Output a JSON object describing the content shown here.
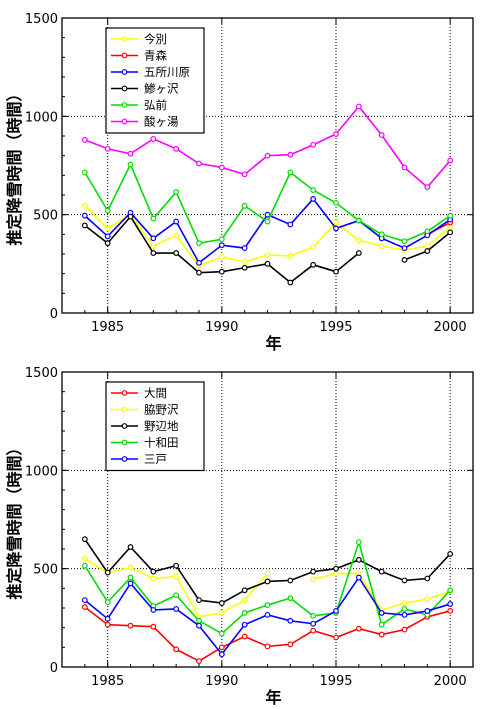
{
  "chart_data": [
    {
      "type": "line",
      "xlabel": "年",
      "ylabel": "推定降雪時間（時間）",
      "xlim": [
        1983,
        2001
      ],
      "ylim": [
        0,
        1500
      ],
      "xticks": [
        1985,
        1990,
        1995,
        2000
      ],
      "yticks": [
        0,
        500,
        1000,
        1500
      ],
      "grid": "dotted",
      "legend_position": "top-left",
      "x": [
        1984,
        1985,
        1986,
        1987,
        1988,
        1989,
        1990,
        1991,
        1992,
        1993,
        1994,
        1995,
        1996,
        1997,
        1998,
        1999,
        2000
      ],
      "series": [
        {
          "name": "今別",
          "color": "#ffff00",
          "values": [
            545,
            430,
            500,
            340,
            395,
            240,
            285,
            260,
            295,
            290,
            335,
            460,
            370,
            340,
            320,
            340,
            435
          ]
        },
        {
          "name": "青森",
          "color": "#ff0000",
          "values": [
            null,
            null,
            null,
            null,
            null,
            null,
            null,
            null,
            null,
            null,
            null,
            null,
            null,
            null,
            null,
            400,
            460
          ]
        },
        {
          "name": "五所川原",
          "color": "#0000ff",
          "values": [
            495,
            390,
            510,
            380,
            465,
            255,
            345,
            330,
            500,
            450,
            580,
            430,
            470,
            380,
            330,
            395,
            475
          ]
        },
        {
          "name": "鯵ヶ沢",
          "color": "#000000",
          "values": [
            445,
            355,
            490,
            305,
            305,
            205,
            210,
            230,
            250,
            155,
            245,
            210,
            305,
            null,
            270,
            315,
            410
          ]
        },
        {
          "name": "弘前",
          "color": "#00dd00",
          "values": [
            715,
            520,
            755,
            480,
            615,
            355,
            375,
            545,
            465,
            715,
            625,
            560,
            470,
            400,
            365,
            415,
            495
          ]
        },
        {
          "name": "酸ヶ湯",
          "color": "#ff00ff",
          "values": [
            880,
            835,
            810,
            885,
            835,
            760,
            740,
            705,
            800,
            805,
            855,
            910,
            1050,
            905,
            740,
            640,
            775
          ]
        }
      ]
    },
    {
      "type": "line",
      "xlabel": "年",
      "ylabel": "推定降雪時間（時間）",
      "xlim": [
        1983,
        2001
      ],
      "ylim": [
        0,
        1500
      ],
      "xticks": [
        1985,
        1990,
        1995,
        2000
      ],
      "yticks": [
        0,
        500,
        1000,
        1500
      ],
      "grid": "dotted",
      "legend_position": "top-left",
      "x": [
        1984,
        1985,
        1986,
        1987,
        1988,
        1989,
        1990,
        1991,
        1992,
        1993,
        1994,
        1995,
        1996,
        1997,
        1998,
        1999,
        2000
      ],
      "series": [
        {
          "name": "大間",
          "color": "#ff0000",
          "values": [
            305,
            215,
            210,
            205,
            90,
            30,
            100,
            155,
            105,
            115,
            185,
            150,
            195,
            165,
            190,
            255,
            285
          ]
        },
        {
          "name": "脇野沢",
          "color": "#ffff00",
          "values": [
            550,
            480,
            505,
            450,
            460,
            255,
            275,
            340,
            475,
            null,
            445,
            475,
            475,
            290,
            325,
            345,
            385
          ]
        },
        {
          "name": "野辺地",
          "color": "#000000",
          "values": [
            650,
            480,
            610,
            485,
            515,
            340,
            325,
            390,
            435,
            440,
            485,
            500,
            545,
            485,
            440,
            450,
            575
          ]
        },
        {
          "name": "十和田",
          "color": "#00dd00",
          "values": [
            515,
            330,
            455,
            310,
            365,
            235,
            170,
            275,
            315,
            350,
            260,
            275,
            635,
            215,
            295,
            265,
            390
          ]
        },
        {
          "name": "三戸",
          "color": "#0000ff",
          "values": [
            340,
            245,
            425,
            290,
            295,
            210,
            65,
            215,
            265,
            235,
            220,
            285,
            455,
            275,
            265,
            285,
            320
          ]
        }
      ]
    }
  ]
}
